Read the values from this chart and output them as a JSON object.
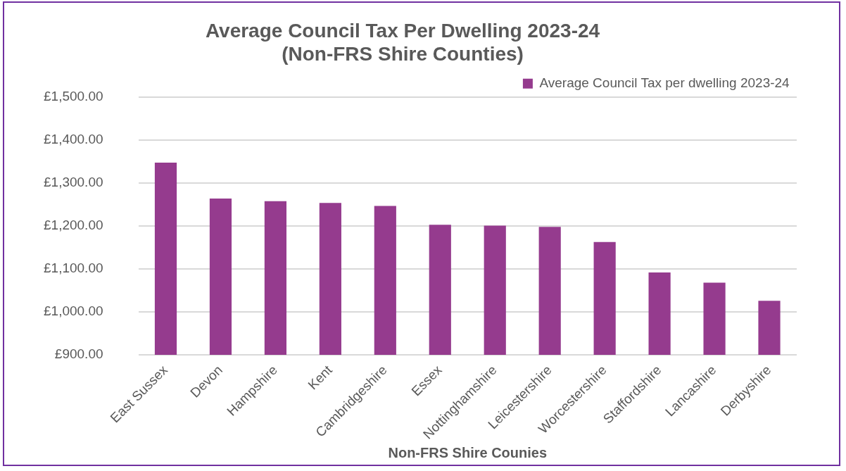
{
  "chart_data": {
    "type": "bar",
    "title": "Average Council Tax Per Dwelling 2023-24\n(Non-FRS Shire Counties)",
    "xlabel": "Non-FRS Shire Counies",
    "categories": [
      "East Sussex",
      "Devon",
      "Hampshire",
      "Kent",
      "Cambridgeshire",
      "Essex",
      "Nottinghamshire",
      "Leicestershire",
      "Worcestershire",
      "Staffordshire",
      "Lancashire",
      "Derbyshire"
    ],
    "series": [
      {
        "name": "Average Council Tax per dwelling 2023-24",
        "color": "#953b8e",
        "values": [
          1348,
          1264,
          1258,
          1254,
          1247,
          1203,
          1201,
          1198,
          1163,
          1092,
          1068,
          1026
        ]
      }
    ],
    "ylim": [
      900,
      1500
    ],
    "yticks": [
      {
        "value": 900,
        "label": "£900.00"
      },
      {
        "value": 1000,
        "label": "£1,000.00"
      },
      {
        "value": 1100,
        "label": "£1,100.00"
      },
      {
        "value": 1200,
        "label": "£1,200.00"
      },
      {
        "value": 1300,
        "label": "£1,300.00"
      },
      {
        "value": 1400,
        "label": "£1,400.00"
      },
      {
        "value": 1500,
        "label": "£1,500.00"
      }
    ],
    "grid": "y",
    "legend": "top right"
  }
}
